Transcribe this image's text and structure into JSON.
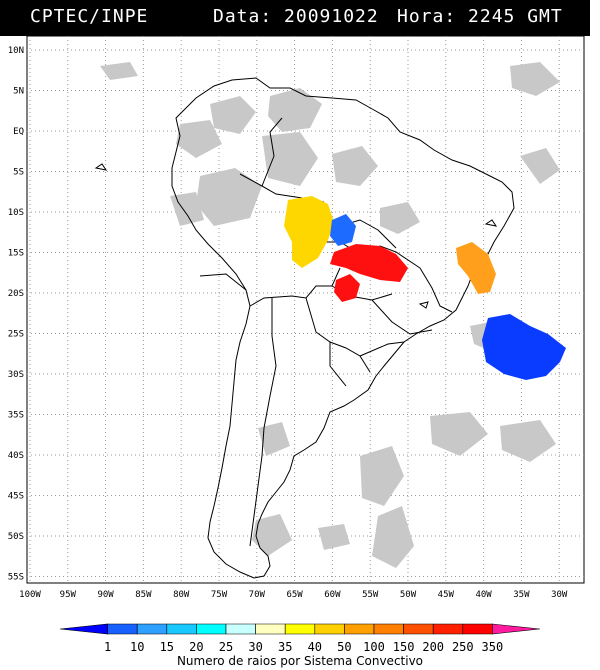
{
  "header": {
    "agency": "CPTEC/INPE",
    "date_text": "Data: 20091022",
    "time_text": "Hora: 2245 GMT"
  },
  "map": {
    "lat_labels": [
      "10N",
      "5N",
      "EQ",
      "5S",
      "10S",
      "15S",
      "20S",
      "25S",
      "30S",
      "35S",
      "40S",
      "45S",
      "50S",
      "55S"
    ],
    "lon_labels": [
      "100W",
      "95W",
      "90W",
      "85W",
      "80W",
      "75W",
      "70W",
      "65W",
      "60W",
      "55W",
      "50W",
      "45W",
      "40W",
      "35W",
      "30W"
    ],
    "systems": [
      {
        "name": "yellow-system",
        "bin": "40",
        "color": "#ffd700"
      },
      {
        "name": "blue-system-small",
        "bin": "10",
        "color": "#1e6bff"
      },
      {
        "name": "red-system-east",
        "bin": "350",
        "color": "#ff1010"
      },
      {
        "name": "red-system-south",
        "bin": "350",
        "color": "#ff1010"
      },
      {
        "name": "orange-system",
        "bin": "150",
        "color": "#ff9f1c"
      },
      {
        "name": "blue-system-ocean",
        "bin": "1",
        "color": "#0a3cff"
      }
    ]
  },
  "colorbar": {
    "ticks": [
      "1",
      "10",
      "15",
      "20",
      "25",
      "30",
      "35",
      "40",
      "50",
      "100",
      "150",
      "200",
      "250",
      "350"
    ],
    "colors": [
      "#0000ff",
      "#1560ff",
      "#2ea0ff",
      "#18c8ff",
      "#00ffff",
      "#c8ffff",
      "#ffffc0",
      "#ffff00",
      "#ffd000",
      "#ffa000",
      "#ff8000",
      "#ff5000",
      "#ff2000",
      "#ff0000",
      "#ff1aa0"
    ],
    "caption": "Numero de raios por Sistema Convectivo"
  }
}
